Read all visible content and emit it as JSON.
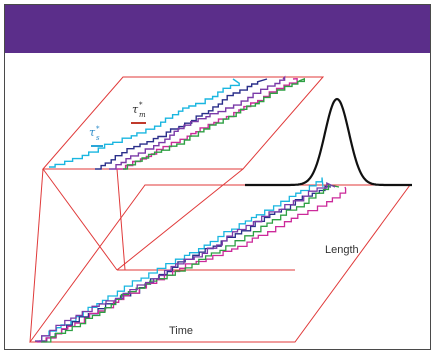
{
  "banner": {
    "color": "#5b2e8a",
    "stripe_color": "#ffffff"
  },
  "frame": {
    "border_color": "#4a4a4a"
  },
  "diagram": {
    "plane_color": "#e03a3a",
    "curve_color": "#111111",
    "labels": {
      "time": "Time",
      "length": "Length",
      "tau_s": {
        "base": "τ",
        "sup": "*",
        "sub": "s",
        "color": "#2a8ac8",
        "underline_color": "#2aa6d8"
      },
      "tau_m": {
        "base": "τ",
        "sup": "*",
        "sub": "m",
        "color": "#2a2a2a",
        "underline_color": "#c0392b"
      }
    },
    "series_colors": {
      "cyan": "#19b6e0",
      "navy": "#2a2f8a",
      "magenta": "#cc2a9a",
      "green": "#2ea043",
      "purple": "#7a3aa8"
    }
  }
}
